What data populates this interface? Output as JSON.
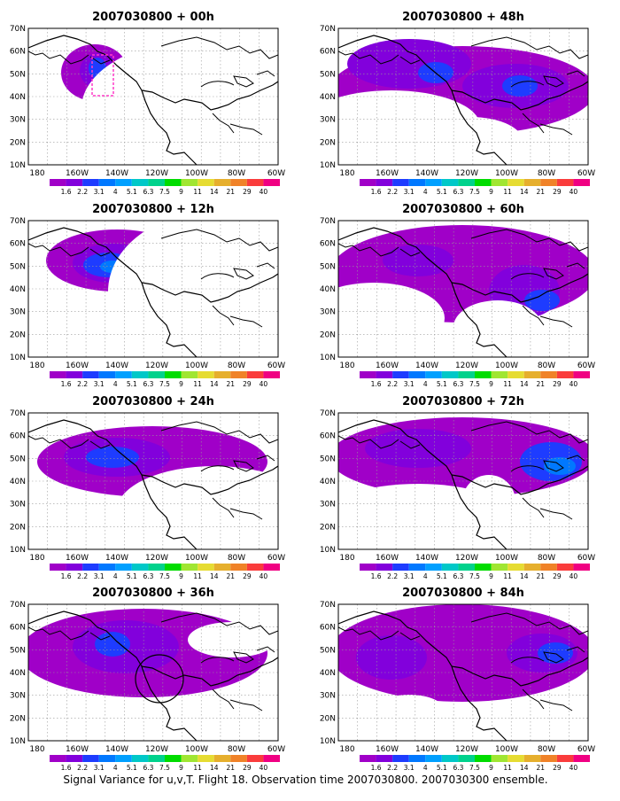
{
  "panels": [
    {
      "title": "2007030800 + 00h"
    },
    {
      "title": "2007030800 + 48h"
    },
    {
      "title": "2007030800 + 12h"
    },
    {
      "title": "2007030800 + 60h"
    },
    {
      "title": "2007030800 + 24h"
    },
    {
      "title": "2007030800 + 72h"
    },
    {
      "title": "2007030800 + 36h"
    },
    {
      "title": "2007030800 + 84h"
    }
  ],
  "axes": {
    "lat_labels": [
      "70N",
      "60N",
      "50N",
      "40N",
      "30N",
      "20N",
      "10N"
    ],
    "lon_labels": [
      "180",
      "160W",
      "140W",
      "120W",
      "100W",
      "80W",
      "60W"
    ]
  },
  "colorbar": {
    "labels": [
      "1.6",
      "2.2",
      "3.1",
      "4",
      "5.1",
      "6.3",
      "7.5",
      "9",
      "11",
      "14",
      "21",
      "29",
      "40"
    ],
    "colors": [
      "#a000c8",
      "#8200dc",
      "#1e3cff",
      "#0078ff",
      "#00a0ff",
      "#00c8c8",
      "#00d28c",
      "#00dc00",
      "#a0e632",
      "#e6dc32",
      "#e6af2d",
      "#f08228",
      "#fa3c3c",
      "#f00082"
    ]
  },
  "footer": "Signal Variance for u,v,T. Flight 18. Observation time 2007030800. 2007030300 ensemble."
}
